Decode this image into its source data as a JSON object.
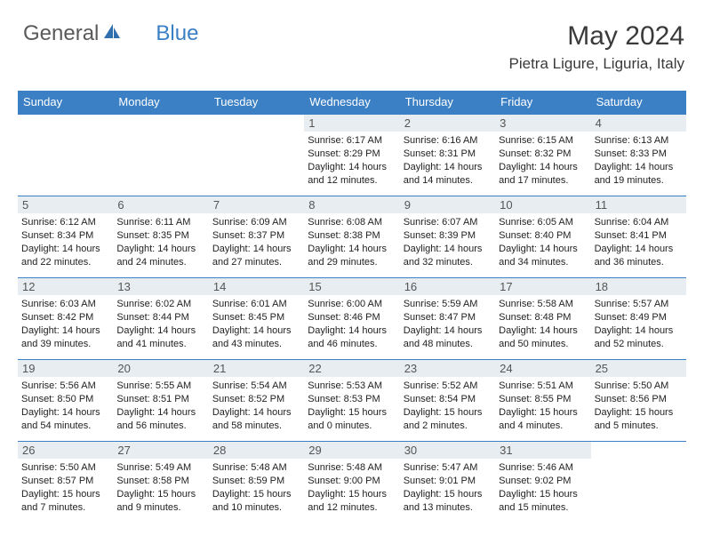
{
  "logo": {
    "text1": "General",
    "text2": "Blue"
  },
  "header": {
    "title": "May 2024",
    "location": "Pietra Ligure, Liguria, Italy"
  },
  "colors": {
    "header_bg": "#3b7fc4",
    "daynum_bg": "#e8edf2",
    "border": "#3b7fc4",
    "text_dark": "#3a3a3a"
  },
  "day_names": [
    "Sunday",
    "Monday",
    "Tuesday",
    "Wednesday",
    "Thursday",
    "Friday",
    "Saturday"
  ],
  "weeks": [
    [
      null,
      null,
      null,
      {
        "d": "1",
        "sr": "6:17 AM",
        "ss": "8:29 PM",
        "dl": "14 hours and 12 minutes."
      },
      {
        "d": "2",
        "sr": "6:16 AM",
        "ss": "8:31 PM",
        "dl": "14 hours and 14 minutes."
      },
      {
        "d": "3",
        "sr": "6:15 AM",
        "ss": "8:32 PM",
        "dl": "14 hours and 17 minutes."
      },
      {
        "d": "4",
        "sr": "6:13 AM",
        "ss": "8:33 PM",
        "dl": "14 hours and 19 minutes."
      }
    ],
    [
      {
        "d": "5",
        "sr": "6:12 AM",
        "ss": "8:34 PM",
        "dl": "14 hours and 22 minutes."
      },
      {
        "d": "6",
        "sr": "6:11 AM",
        "ss": "8:35 PM",
        "dl": "14 hours and 24 minutes."
      },
      {
        "d": "7",
        "sr": "6:09 AM",
        "ss": "8:37 PM",
        "dl": "14 hours and 27 minutes."
      },
      {
        "d": "8",
        "sr": "6:08 AM",
        "ss": "8:38 PM",
        "dl": "14 hours and 29 minutes."
      },
      {
        "d": "9",
        "sr": "6:07 AM",
        "ss": "8:39 PM",
        "dl": "14 hours and 32 minutes."
      },
      {
        "d": "10",
        "sr": "6:05 AM",
        "ss": "8:40 PM",
        "dl": "14 hours and 34 minutes."
      },
      {
        "d": "11",
        "sr": "6:04 AM",
        "ss": "8:41 PM",
        "dl": "14 hours and 36 minutes."
      }
    ],
    [
      {
        "d": "12",
        "sr": "6:03 AM",
        "ss": "8:42 PM",
        "dl": "14 hours and 39 minutes."
      },
      {
        "d": "13",
        "sr": "6:02 AM",
        "ss": "8:44 PM",
        "dl": "14 hours and 41 minutes."
      },
      {
        "d": "14",
        "sr": "6:01 AM",
        "ss": "8:45 PM",
        "dl": "14 hours and 43 minutes."
      },
      {
        "d": "15",
        "sr": "6:00 AM",
        "ss": "8:46 PM",
        "dl": "14 hours and 46 minutes."
      },
      {
        "d": "16",
        "sr": "5:59 AM",
        "ss": "8:47 PM",
        "dl": "14 hours and 48 minutes."
      },
      {
        "d": "17",
        "sr": "5:58 AM",
        "ss": "8:48 PM",
        "dl": "14 hours and 50 minutes."
      },
      {
        "d": "18",
        "sr": "5:57 AM",
        "ss": "8:49 PM",
        "dl": "14 hours and 52 minutes."
      }
    ],
    [
      {
        "d": "19",
        "sr": "5:56 AM",
        "ss": "8:50 PM",
        "dl": "14 hours and 54 minutes."
      },
      {
        "d": "20",
        "sr": "5:55 AM",
        "ss": "8:51 PM",
        "dl": "14 hours and 56 minutes."
      },
      {
        "d": "21",
        "sr": "5:54 AM",
        "ss": "8:52 PM",
        "dl": "14 hours and 58 minutes."
      },
      {
        "d": "22",
        "sr": "5:53 AM",
        "ss": "8:53 PM",
        "dl": "15 hours and 0 minutes."
      },
      {
        "d": "23",
        "sr": "5:52 AM",
        "ss": "8:54 PM",
        "dl": "15 hours and 2 minutes."
      },
      {
        "d": "24",
        "sr": "5:51 AM",
        "ss": "8:55 PM",
        "dl": "15 hours and 4 minutes."
      },
      {
        "d": "25",
        "sr": "5:50 AM",
        "ss": "8:56 PM",
        "dl": "15 hours and 5 minutes."
      }
    ],
    [
      {
        "d": "26",
        "sr": "5:50 AM",
        "ss": "8:57 PM",
        "dl": "15 hours and 7 minutes."
      },
      {
        "d": "27",
        "sr": "5:49 AM",
        "ss": "8:58 PM",
        "dl": "15 hours and 9 minutes."
      },
      {
        "d": "28",
        "sr": "5:48 AM",
        "ss": "8:59 PM",
        "dl": "15 hours and 10 minutes."
      },
      {
        "d": "29",
        "sr": "5:48 AM",
        "ss": "9:00 PM",
        "dl": "15 hours and 12 minutes."
      },
      {
        "d": "30",
        "sr": "5:47 AM",
        "ss": "9:01 PM",
        "dl": "15 hours and 13 minutes."
      },
      {
        "d": "31",
        "sr": "5:46 AM",
        "ss": "9:02 PM",
        "dl": "15 hours and 15 minutes."
      },
      null
    ]
  ],
  "labels": {
    "sunrise": "Sunrise:",
    "sunset": "Sunset:",
    "daylight": "Daylight:"
  }
}
